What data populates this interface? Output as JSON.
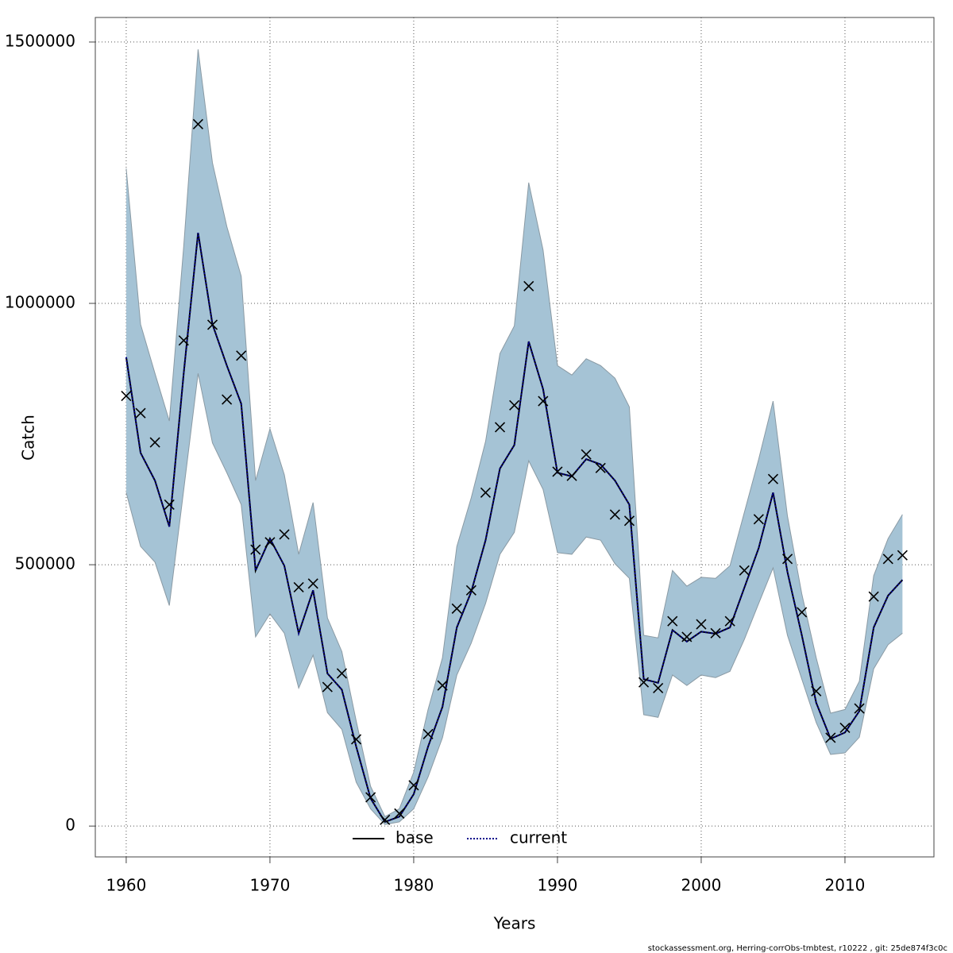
{
  "chart_data": {
    "type": "line",
    "xlabel": "Years",
    "ylabel": "Catch",
    "footnote": "stockassessment.org, Herring-corrObs-tmbtest, r10222 , git: 25de874f3c0c",
    "x": [
      1960,
      1961,
      1962,
      1963,
      1964,
      1965,
      1966,
      1967,
      1968,
      1969,
      1970,
      1971,
      1972,
      1973,
      1974,
      1975,
      1976,
      1977,
      1978,
      1979,
      1980,
      1981,
      1982,
      1983,
      1984,
      1985,
      1986,
      1987,
      1988,
      1989,
      1990,
      1991,
      1992,
      1993,
      1994,
      1995,
      1996,
      1997,
      1998,
      1999,
      2000,
      2001,
      2002,
      2003,
      2004,
      2005,
      2006,
      2007,
      2008,
      2009,
      2010,
      2011,
      2012,
      2013,
      2014
    ],
    "series": [
      {
        "name": "base",
        "color": "#000000",
        "values": [
          897000,
          714000,
          661000,
          573000,
          866000,
          1135000,
          960000,
          881000,
          808000,
          489000,
          550000,
          498000,
          369000,
          451000,
          292000,
          261000,
          152000,
          53000,
          8000,
          18000,
          61000,
          152000,
          228000,
          380000,
          448000,
          547000,
          684000,
          729000,
          927000,
          836000,
          676000,
          669000,
          702000,
          692000,
          661000,
          615000,
          281000,
          274000,
          375000,
          353000,
          372000,
          368000,
          380000,
          456000,
          532000,
          638000,
          486000,
          365000,
          236000,
          167000,
          179000,
          220000,
          380000,
          441000,
          471000
        ]
      },
      {
        "name": "current",
        "color": "#00008b",
        "values": [
          897000,
          714000,
          661000,
          573000,
          866000,
          1135000,
          960000,
          881000,
          808000,
          489000,
          550000,
          498000,
          369000,
          451000,
          292000,
          261000,
          152000,
          53000,
          8000,
          18000,
          61000,
          152000,
          228000,
          380000,
          448000,
          547000,
          684000,
          729000,
          927000,
          836000,
          676000,
          669000,
          702000,
          692000,
          661000,
          615000,
          281000,
          274000,
          375000,
          353000,
          372000,
          368000,
          380000,
          456000,
          532000,
          638000,
          486000,
          365000,
          236000,
          167000,
          179000,
          220000,
          380000,
          441000,
          471000
        ]
      }
    ],
    "observations": [
      823000,
      790000,
      734000,
      615000,
      929000,
      1343000,
      959000,
      816000,
      900000,
      529000,
      543000,
      558000,
      457000,
      464000,
      266000,
      292000,
      166000,
      55000,
      12000,
      24000,
      78000,
      176000,
      269000,
      416000,
      451000,
      638000,
      763000,
      805000,
      1033000,
      813000,
      678000,
      670000,
      711000,
      685000,
      596000,
      584000,
      275000,
      264000,
      392000,
      362000,
      386000,
      369000,
      392000,
      489000,
      587000,
      664000,
      511000,
      409000,
      258000,
      169000,
      188000,
      225000,
      439000,
      511000,
      518000
    ],
    "band": {
      "color": "#a5c3d5",
      "upper": [
        1258000,
        960000,
        866000,
        775000,
        1109000,
        1486000,
        1269000,
        1147000,
        1052000,
        661000,
        760000,
        672000,
        520000,
        619000,
        398000,
        334000,
        201000,
        76000,
        18000,
        33000,
        103000,
        223000,
        322000,
        535000,
        628000,
        736000,
        904000,
        957000,
        1231000,
        1102000,
        881000,
        863000,
        894000,
        881000,
        857000,
        802000,
        365000,
        360000,
        489000,
        459000,
        476000,
        474000,
        498000,
        600000,
        702000,
        813000,
        593000,
        444000,
        322000,
        216000,
        223000,
        277000,
        479000,
        550000,
        596000
      ],
      "lower": [
        638000,
        535000,
        505000,
        422000,
        643000,
        866000,
        733000,
        676000,
        615000,
        362000,
        406000,
        369000,
        264000,
        327000,
        217000,
        185000,
        84000,
        33000,
        3000,
        8000,
        33000,
        94000,
        169000,
        289000,
        350000,
        426000,
        520000,
        562000,
        699000,
        644000,
        523000,
        520000,
        553000,
        547000,
        502000,
        474000,
        213000,
        208000,
        289000,
        269000,
        289000,
        284000,
        296000,
        357000,
        426000,
        494000,
        365000,
        281000,
        198000,
        137000,
        140000,
        170000,
        301000,
        347000,
        369000
      ]
    },
    "xlim": [
      1957.85,
      2016.19
    ],
    "ylim": [
      -59000,
      1547000
    ],
    "xticks": [
      1960,
      1970,
      1980,
      1990,
      2000,
      2010
    ],
    "yticks": [
      0,
      500000,
      1000000,
      1500000
    ],
    "grid": true,
    "legend": "bottom"
  }
}
